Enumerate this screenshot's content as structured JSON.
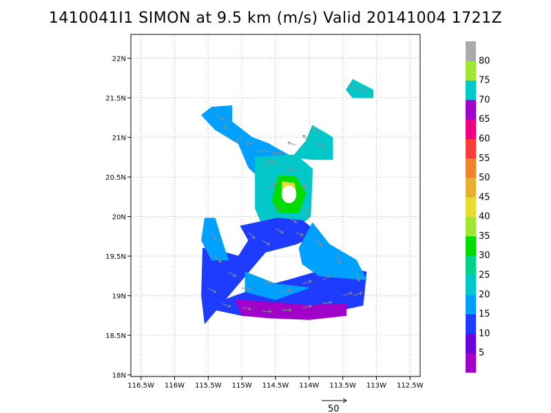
{
  "title": "1410041I1 SIMON at 9.5 km (m/s) Valid 20141004 1721Z",
  "map": {
    "lon_range": [
      -116.65,
      -112.35
    ],
    "lat_range": [
      17.98,
      22.3
    ],
    "lon_ticks": [
      {
        "value": -116.5,
        "label": "116.5W"
      },
      {
        "value": -116.0,
        "label": "116W"
      },
      {
        "value": -115.5,
        "label": "115.5W"
      },
      {
        "value": -115.0,
        "label": "115W"
      },
      {
        "value": -114.5,
        "label": "114.5W"
      },
      {
        "value": -114.0,
        "label": "114W"
      },
      {
        "value": -113.5,
        "label": "113.5W"
      },
      {
        "value": -113.0,
        "label": "113W"
      },
      {
        "value": -112.5,
        "label": "112.5W"
      }
    ],
    "lat_ticks": [
      {
        "value": 18.0,
        "label": "18N"
      },
      {
        "value": 18.5,
        "label": "18.5N"
      },
      {
        "value": 19.0,
        "label": "19N"
      },
      {
        "value": 19.5,
        "label": "19.5N"
      },
      {
        "value": 20.0,
        "label": "20N"
      },
      {
        "value": 20.5,
        "label": "20.5N"
      },
      {
        "value": 21.0,
        "label": "21N"
      },
      {
        "value": 21.5,
        "label": "21.5N"
      },
      {
        "value": 22.0,
        "label": "22N"
      }
    ]
  },
  "colorbar": {
    "bins": [
      {
        "color": "#a000c8",
        "label": "5"
      },
      {
        "color": "#6e00dc",
        "label": "10"
      },
      {
        "color": "#1e3cff",
        "label": "15"
      },
      {
        "color": "#00a0ff",
        "label": "20"
      },
      {
        "color": "#00c8c8",
        "label": "25"
      },
      {
        "color": "#00d28c",
        "label": "30"
      },
      {
        "color": "#00dc00",
        "label": "35"
      },
      {
        "color": "#a0e632",
        "label": "40"
      },
      {
        "color": "#e6dc32",
        "label": "45"
      },
      {
        "color": "#e6af2d",
        "label": "50"
      },
      {
        "color": "#f08228",
        "label": "55"
      },
      {
        "color": "#fa3c3c",
        "label": "60"
      },
      {
        "color": "#f00082",
        "label": "65"
      },
      {
        "color": "#a000c8",
        "label": "70"
      },
      {
        "color": "#00c8c8",
        "label": "75"
      },
      {
        "color": "#a0e632",
        "label": "80"
      },
      {
        "color": "#aaaaaa",
        "label": ""
      }
    ]
  },
  "vector_key": {
    "label": "50"
  },
  "wind_regions": [
    {
      "name": "northeast-band",
      "speed_class": 25,
      "polygon": [
        [
          -113.95,
          21.15
        ],
        [
          -113.65,
          21.0
        ],
        [
          -113.65,
          20.72
        ],
        [
          -113.95,
          20.72
        ],
        [
          -114.25,
          20.75
        ],
        [
          -114.05,
          20.95
        ]
      ]
    },
    {
      "name": "far-northeast-patch",
      "speed_class": 25,
      "polygon": [
        [
          -113.35,
          21.73
        ],
        [
          -113.05,
          21.6
        ],
        [
          -113.05,
          21.5
        ],
        [
          -113.35,
          21.5
        ],
        [
          -113.45,
          21.6
        ]
      ]
    },
    {
      "name": "northwest-band",
      "speed_class": 20,
      "polygon": [
        [
          -115.45,
          21.38
        ],
        [
          -115.15,
          21.4
        ],
        [
          -115.15,
          21.2
        ],
        [
          -114.85,
          21.0
        ],
        [
          -114.6,
          20.92
        ],
        [
          -114.25,
          20.75
        ],
        [
          -114.25,
          20.58
        ],
        [
          -114.75,
          20.5
        ],
        [
          -114.9,
          20.62
        ],
        [
          -115.05,
          20.92
        ],
        [
          -115.4,
          21.1
        ],
        [
          -115.6,
          21.28
        ]
      ]
    },
    {
      "name": "core-ring",
      "speed_class": 25,
      "polygon": [
        [
          -114.8,
          20.75
        ],
        [
          -114.2,
          20.78
        ],
        [
          -113.95,
          20.6
        ],
        [
          -113.98,
          20.0
        ],
        [
          -114.2,
          19.85
        ],
        [
          -114.7,
          19.9
        ],
        [
          -114.8,
          20.1
        ]
      ]
    },
    {
      "name": "eyewall",
      "speed_class": 35,
      "polygon": [
        [
          -114.45,
          20.52
        ],
        [
          -114.2,
          20.5
        ],
        [
          -114.05,
          20.3
        ],
        [
          -114.15,
          20.05
        ],
        [
          -114.45,
          20.05
        ],
        [
          -114.55,
          20.2
        ]
      ]
    },
    {
      "name": "eyewall-max",
      "speed_class": 45,
      "polygon": [
        [
          -114.4,
          20.44
        ],
        [
          -114.22,
          20.42
        ],
        [
          -114.2,
          20.32
        ],
        [
          -114.4,
          20.32
        ]
      ]
    },
    {
      "name": "southwest-band",
      "speed_class": 15,
      "polygon": [
        [
          -115.02,
          19.88
        ],
        [
          -114.48,
          19.98
        ],
        [
          -114.1,
          19.95
        ],
        [
          -113.85,
          19.78
        ],
        [
          -114.2,
          19.65
        ],
        [
          -114.65,
          19.55
        ],
        [
          -114.9,
          19.3
        ],
        [
          -115.2,
          19.0
        ],
        [
          -115.25,
          18.95
        ],
        [
          -115.55,
          18.65
        ],
        [
          -115.6,
          19.0
        ],
        [
          -115.58,
          19.6
        ],
        [
          -115.4,
          19.58
        ],
        [
          -115.05,
          19.5
        ],
        [
          -114.9,
          19.7
        ]
      ]
    },
    {
      "name": "west-arc",
      "speed_class": 20,
      "polygon": [
        [
          -115.55,
          19.98
        ],
        [
          -115.4,
          19.98
        ],
        [
          -115.3,
          19.7
        ],
        [
          -115.2,
          19.45
        ],
        [
          -115.45,
          19.45
        ],
        [
          -115.6,
          19.7
        ]
      ]
    },
    {
      "name": "south-band",
      "speed_class": 15,
      "polygon": [
        [
          -115.55,
          18.85
        ],
        [
          -115.0,
          18.75
        ],
        [
          -114.4,
          18.72
        ],
        [
          -113.9,
          18.75
        ],
        [
          -113.2,
          18.88
        ],
        [
          -113.15,
          19.3
        ],
        [
          -113.4,
          19.35
        ],
        [
          -113.9,
          19.3
        ],
        [
          -114.3,
          19.2
        ],
        [
          -114.75,
          19.1
        ],
        [
          -115.1,
          19.0
        ]
      ]
    },
    {
      "name": "east-band",
      "speed_class": 20,
      "polygon": [
        [
          -113.95,
          19.92
        ],
        [
          -113.7,
          19.65
        ],
        [
          -113.3,
          19.45
        ],
        [
          -113.15,
          19.2
        ],
        [
          -113.45,
          19.22
        ],
        [
          -113.85,
          19.25
        ],
        [
          -114.1,
          19.4
        ],
        [
          -114.15,
          19.6
        ]
      ]
    },
    {
      "name": "south-core",
      "speed_class": 20,
      "polygon": [
        [
          -114.95,
          19.3
        ],
        [
          -114.5,
          19.15
        ],
        [
          -114.0,
          19.1
        ],
        [
          -114.5,
          18.95
        ],
        [
          -114.95,
          19.05
        ]
      ]
    },
    {
      "name": "south-max",
      "speed_class": 5,
      "polygon": [
        [
          -115.1,
          18.95
        ],
        [
          -114.0,
          18.88
        ],
        [
          -113.45,
          18.9
        ],
        [
          -113.45,
          18.75
        ],
        [
          -114.0,
          18.7
        ],
        [
          -114.6,
          18.72
        ],
        [
          -115.0,
          18.75
        ]
      ]
    }
  ],
  "eye": {
    "center": [
      -114.3,
      20.28
    ],
    "radius_deg": 0.11
  },
  "vectors": [
    {
      "lon": -115.4,
      "lat": 21.3,
      "u": 6,
      "v": -4
    },
    {
      "lon": -115.2,
      "lat": 21.2,
      "u": -3,
      "v": -5
    },
    {
      "lon": -115.0,
      "lat": 21.0,
      "u": -4,
      "v": -3
    },
    {
      "lon": -114.8,
      "lat": 20.95,
      "u": -6,
      "v": -2
    },
    {
      "lon": -114.6,
      "lat": 20.85,
      "u": -6,
      "v": -2
    },
    {
      "lon": -114.4,
      "lat": 20.8,
      "u": -6,
      "v": 0
    },
    {
      "lon": -114.2,
      "lat": 20.9,
      "u": -5,
      "v": 2
    },
    {
      "lon": -114.0,
      "lat": 20.95,
      "u": -4,
      "v": 4
    },
    {
      "lon": -113.85,
      "lat": 21.05,
      "u": -5,
      "v": 4
    },
    {
      "lon": -113.75,
      "lat": 20.85,
      "u": -5,
      "v": 4
    },
    {
      "lon": -113.3,
      "lat": 21.6,
      "u": -5,
      "v": 3
    },
    {
      "lon": -113.15,
      "lat": 21.55,
      "u": -4,
      "v": 4
    },
    {
      "lon": -114.65,
      "lat": 20.6,
      "u": 2,
      "v": 6
    },
    {
      "lon": -114.6,
      "lat": 20.35,
      "u": 5,
      "v": 4
    },
    {
      "lon": -114.55,
      "lat": 20.1,
      "u": 6,
      "v": 0
    },
    {
      "lon": -114.3,
      "lat": 19.98,
      "u": 5,
      "v": -3
    },
    {
      "lon": -114.05,
      "lat": 20.1,
      "u": 2,
      "v": -6
    },
    {
      "lon": -114.0,
      "lat": 20.45,
      "u": -4,
      "v": -5
    },
    {
      "lon": -114.2,
      "lat": 20.6,
      "u": -6,
      "v": -1
    },
    {
      "lon": -114.45,
      "lat": 20.65,
      "u": -5,
      "v": 3
    },
    {
      "lon": -114.9,
      "lat": 19.8,
      "u": 4,
      "v": -4
    },
    {
      "lon": -114.7,
      "lat": 19.7,
      "u": 5,
      "v": -3
    },
    {
      "lon": -114.5,
      "lat": 19.85,
      "u": 5,
      "v": -3
    },
    {
      "lon": -114.2,
      "lat": 19.8,
      "u": 5,
      "v": -2
    },
    {
      "lon": -113.9,
      "lat": 19.7,
      "u": 4,
      "v": -4
    },
    {
      "lon": -113.6,
      "lat": 19.5,
      "u": 3,
      "v": -5
    },
    {
      "lon": -113.3,
      "lat": 19.3,
      "u": 2,
      "v": -6
    },
    {
      "lon": -115.45,
      "lat": 19.8,
      "u": 3,
      "v": -5
    },
    {
      "lon": -115.4,
      "lat": 19.5,
      "u": 4,
      "v": -4
    },
    {
      "lon": -115.2,
      "lat": 19.3,
      "u": 5,
      "v": -3
    },
    {
      "lon": -115.5,
      "lat": 19.1,
      "u": 5,
      "v": -3
    },
    {
      "lon": -115.3,
      "lat": 18.9,
      "u": 6,
      "v": -2
    },
    {
      "lon": -115.0,
      "lat": 18.85,
      "u": 6,
      "v": -1
    },
    {
      "lon": -114.7,
      "lat": 18.8,
      "u": 6,
      "v": 0
    },
    {
      "lon": -114.4,
      "lat": 18.82,
      "u": 6,
      "v": 0
    },
    {
      "lon": -114.1,
      "lat": 18.85,
      "u": 6,
      "v": 1
    },
    {
      "lon": -113.8,
      "lat": 18.9,
      "u": 6,
      "v": 1
    },
    {
      "lon": -113.5,
      "lat": 19.0,
      "u": 6,
      "v": 2
    },
    {
      "lon": -114.7,
      "lat": 19.15,
      "u": 6,
      "v": 1
    },
    {
      "lon": -114.4,
      "lat": 19.05,
      "u": 6,
      "v": 1
    },
    {
      "lon": -114.1,
      "lat": 19.15,
      "u": 6,
      "v": 2
    },
    {
      "lon": -113.8,
      "lat": 19.2,
      "u": 5,
      "v": 3
    },
    {
      "lon": -115.0,
      "lat": 19.1,
      "u": 6,
      "v": -1
    },
    {
      "lon": -113.35,
      "lat": 19.0,
      "u": 6,
      "v": 2
    }
  ]
}
